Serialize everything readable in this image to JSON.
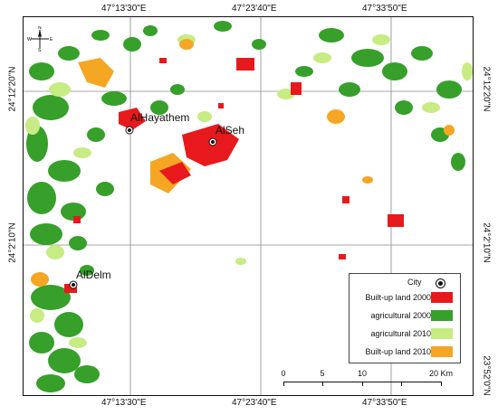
{
  "map": {
    "top_coords": [
      "47°13'30\"E",
      "47°23'40\"E",
      "47°33'50\"E"
    ],
    "bottom_coords": [
      "47°13'30\"E",
      "47°23'40\"E",
      "47°33'50\"E"
    ],
    "left_coords": [
      "24°12'20\"N",
      "24°2'10\"N"
    ],
    "right_coords": [
      "24°12'20\"N",
      "24°2'10\"N",
      "23°52'0\"N"
    ],
    "cities": [
      {
        "name": "AlHayathem"
      },
      {
        "name": "AlSeh"
      },
      {
        "name": "AlDelm"
      }
    ],
    "north_arrow": {
      "n": "N",
      "s": "S",
      "e": "E",
      "w": "W"
    }
  },
  "legend": {
    "city_label": "City",
    "items": [
      {
        "label": "Built-up land 2000",
        "color": "#e8191c"
      },
      {
        "label": "agricultural 2000",
        "color": "#36a02a"
      },
      {
        "label": "agricultural 2010",
        "color": "#c7ec83"
      },
      {
        "label": "Built-up land 2010",
        "color": "#f5a623"
      }
    ]
  },
  "scale": {
    "ticks": [
      "0",
      "5",
      "10",
      "20 Km"
    ]
  }
}
